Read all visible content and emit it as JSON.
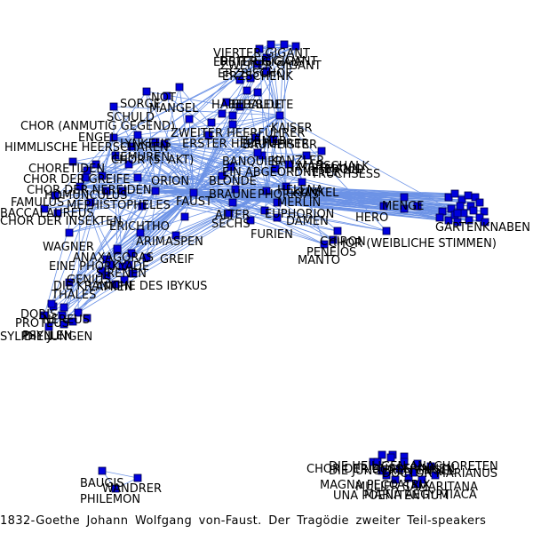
{
  "caption": "1832-Goethe Johann Wolfgang von-Faust. Der Tragödie zweiter Teil-speakers",
  "colors": {
    "node": "#0000dd",
    "edge": "#6d93e6",
    "label": "#000000",
    "background": "#ffffff"
  },
  "nodes": [
    "VIERTER GIGANT",
    "ERSTER GIGANT",
    "ZWEITER GIGANT",
    "DRITTER GIGANT",
    "ERZBISCHOF",
    "ERZSCHENK",
    "HABEBALDE",
    "EILEBEUTE",
    "SORGE",
    "NOT",
    "MANGEL",
    "SCHULD",
    "CHOR (ANMUTIG GEGEND)",
    "ENGEL",
    "HIMMLISCHE HEERSCHAREN",
    "LEMUREN",
    "LYNKEUS",
    "CHOR (5. AKT)",
    "KAISER",
    "ZWEITER HEERFÜHRER",
    "TÜRMER",
    "BAUMEISTER",
    "ERSTER HEERFÜHRER",
    "KANZLER",
    "MARSCHALK",
    "HAUPTMANN",
    "BANQUIER",
    "EIN ABGEORDNETER",
    "TRUCHSESS",
    "HEROLD",
    "CHORETIDEN",
    "CHOR DER GREIFE",
    "CHOR DER NEREIDEN",
    "HOMUNCULUS",
    "FAMULUS",
    "CHOR DER INSEKTEN",
    "BACCALAUREUS",
    "MEPHISTOPHELES",
    "FAUST",
    "ORION",
    "BLONDE",
    "BRAUNE",
    "PHORKYAS",
    "HELENA",
    "ALTER",
    "SECHS",
    "FURIEN",
    "KUNKEL",
    "MERLIN",
    "DAMEN",
    "EUPHORION",
    "WAGNER",
    "ARIMASPEN",
    "ANAXAGORAS",
    "GREIF",
    "EINE PHORKYADE",
    "SIRENEN",
    "GENIUS",
    "LAMIEN",
    "THALES",
    "DIE KRANICHE DES IBYKUS",
    "ERICHTHO",
    "DORIS",
    "PROTEUS",
    "SYLPHEN",
    "DIE JUNGEN",
    "PSYLLEN",
    "NEREUS",
    "MANTO",
    "PENEIOS",
    "CHIRON",
    "CHOR (WEIBLICHE STIMMEN)",
    "HERO",
    "MENGE",
    "GARTENKNABEN",
    "BAUGIS",
    "WANDRER",
    "PHILEMON",
    "DIE HEILIGEN ANACHORETEN",
    "CHOR DER BÜSSERINNEN",
    "DIE JÜNGEREN ENGEL",
    "MAGNA PECCATRIX",
    "MULIER SAMARITANA",
    "UNA POENITENTIUM",
    "MARIA AEGYPTIACA",
    "DOCTOR MARIANUS"
  ]
}
